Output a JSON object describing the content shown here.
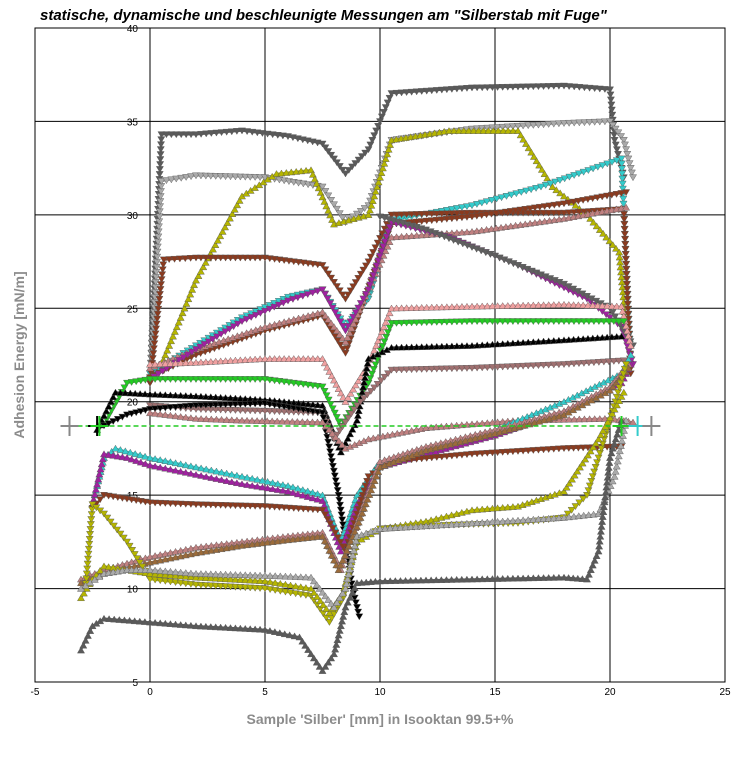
{
  "chart_data": {
    "type": "line",
    "title": "statische, dynamische und beschleunigte Messungen am \"Silberstab mit Fuge\"",
    "xlabel": "Sample 'Silber' [mm] in Isooktan 99.5+%",
    "ylabel": "Adhesion Energy [mN/m]",
    "xlim": [
      -5,
      25
    ],
    "ylim": [
      5,
      40
    ],
    "x_ticks": [
      "-5",
      "0",
      "5",
      "10",
      "15",
      "20",
      "25"
    ],
    "y_ticks": [
      "5",
      "10",
      "15",
      "20",
      "25",
      "30",
      "35",
      "40"
    ],
    "grid": true,
    "baseline": {
      "y": 18.7,
      "x": [
        -3.5,
        21.8
      ],
      "color": "#22cc22"
    },
    "series": [
      {
        "color": "#5a5a5a",
        "marker": "down",
        "x": [
          0,
          0.5,
          2,
          4,
          6,
          7.5,
          8.5,
          9.5,
          10.5,
          14,
          18,
          20,
          20.2,
          20.6
        ],
        "y": [
          21,
          34.3,
          34.3,
          34.5,
          34.2,
          33.8,
          32.2,
          33.5,
          36.5,
          36.8,
          36.9,
          36.7,
          34,
          32
        ]
      },
      {
        "color": "#aaaaaa",
        "marker": "down",
        "x": [
          0,
          0.5,
          2,
          5,
          7.5,
          8.5,
          9.5,
          10.5,
          14,
          18,
          20,
          20.6,
          21
        ],
        "y": [
          21,
          31.8,
          32.1,
          32,
          31.5,
          29.6,
          30.5,
          34,
          34.6,
          34.9,
          35,
          34,
          32
        ]
      },
      {
        "color": "#b5b500",
        "marker": "up",
        "x": [
          0.5,
          2,
          4,
          5.5,
          7,
          8,
          9.5,
          10.5,
          13,
          16,
          17.5,
          19,
          20.4,
          20.7
        ],
        "y": [
          22,
          26.5,
          31,
          32.2,
          32.4,
          29.5,
          30,
          34,
          34.5,
          34.5,
          31.5,
          30,
          28,
          24
        ]
      },
      {
        "color": "#33cccc",
        "marker": "down",
        "x": [
          0,
          2,
          4,
          6,
          7.5,
          8.5,
          9.5,
          10.5,
          14,
          17,
          20.5,
          20.9
        ],
        "y": [
          21.5,
          23,
          24.5,
          25.6,
          26,
          24,
          25.5,
          29.7,
          30.5,
          31.5,
          33,
          22
        ]
      },
      {
        "color": "#8b3a1e",
        "marker": "down",
        "x": [
          0,
          0.6,
          2,
          5,
          7.5,
          8.5,
          9.5,
          10.5,
          14,
          18,
          20.6,
          20.9
        ],
        "y": [
          21,
          27.6,
          27.7,
          27.7,
          27.3,
          25.5,
          27.5,
          30,
          30.1,
          30.1,
          30.3,
          21.5
        ]
      },
      {
        "color": "#8b3a1e",
        "marker": "down",
        "x": [
          0,
          2,
          5,
          7.5,
          8.5,
          10.5,
          14,
          18,
          20.7
        ],
        "y": [
          21.3,
          22.5,
          23.8,
          24.6,
          22.6,
          29.5,
          29.9,
          30.6,
          31.2
        ]
      },
      {
        "color": "#c08080",
        "marker": "up",
        "x": [
          0,
          2,
          5,
          7.5,
          8.5,
          10.5,
          14,
          18,
          20.7
        ],
        "y": [
          21.8,
          22.8,
          24,
          24.8,
          23.2,
          28.8,
          29.1,
          29.8,
          30.4
        ]
      },
      {
        "color": "#a020a0",
        "marker": "down",
        "x": [
          0,
          2,
          4,
          6,
          7.5,
          8.5,
          9.5,
          10.5,
          13,
          16,
          19,
          20.5,
          21
        ],
        "y": [
          21.2,
          22.8,
          24.3,
          25.4,
          26,
          23.8,
          26,
          29.6,
          28.8,
          27.3,
          25.5,
          24,
          22
        ]
      },
      {
        "color": "#606060",
        "marker": "down",
        "x": [
          10,
          12,
          15,
          18,
          20,
          21
        ],
        "y": [
          29.9,
          29.2,
          27.8,
          26.3,
          25,
          23
        ]
      },
      {
        "color": "#f0a0a0",
        "marker": "up",
        "x": [
          0,
          2,
          5,
          7.5,
          8.5,
          9.5,
          10.5,
          14,
          18,
          20.5,
          20.9
        ],
        "y": [
          22,
          22.1,
          22.3,
          22.3,
          20,
          22,
          25,
          25.1,
          25.2,
          25.1,
          23
        ]
      },
      {
        "color": "#22cc22",
        "marker": "down",
        "x": [
          -2,
          -1,
          0,
          2,
          5,
          7.5,
          8.3,
          9.5,
          10.5,
          14,
          18,
          20.6
        ],
        "y": [
          18.8,
          21,
          21.2,
          21.2,
          21.2,
          20.8,
          18.7,
          21,
          24.2,
          24.3,
          24.3,
          24.3
        ]
      },
      {
        "color": "#000000",
        "marker": "up",
        "x": [
          -2.3,
          -1.5,
          0,
          2,
          5,
          7.5,
          8.3,
          9,
          9.5,
          10.5,
          14,
          18,
          20.5
        ],
        "y": [
          18.5,
          20.5,
          20.4,
          20.3,
          20.1,
          19.8,
          17.3,
          19,
          22.3,
          22.9,
          23,
          23.3,
          23.5
        ]
      },
      {
        "color": "#a07070",
        "marker": "down",
        "x": [
          0,
          2,
          5,
          7.5,
          8,
          9,
          10.5,
          14,
          18,
          20.6
        ],
        "y": [
          19.8,
          19.6,
          19.5,
          19.4,
          18,
          19.8,
          21.7,
          21.8,
          22,
          22.2
        ]
      },
      {
        "color": "#000000",
        "marker": "down",
        "x": [
          -2.2,
          -1,
          0,
          2,
          5,
          7.5,
          8.2,
          8.8,
          9.1
        ],
        "y": [
          18.6,
          19.3,
          19.6,
          19.8,
          19.9,
          19.4,
          15,
          10,
          8.5
        ]
      },
      {
        "color": "#c08080",
        "marker": "up",
        "x": [
          0,
          2,
          4,
          7.5,
          8.5,
          9.5,
          12,
          16,
          20,
          21
        ],
        "y": [
          19.4,
          19.1,
          19,
          18.9,
          17.5,
          18,
          18.6,
          19,
          19.1,
          18.9
        ]
      },
      {
        "color": "#33cccc",
        "marker": "up",
        "x": [
          -2.5,
          -2,
          -1.5,
          0,
          2,
          4,
          6,
          7.5,
          8.3,
          9,
          10,
          12,
          15,
          18,
          20.5,
          20.9
        ],
        "y": [
          14.5,
          17,
          17.5,
          17,
          16.5,
          16,
          15.5,
          15,
          12.5,
          15,
          16.8,
          17.5,
          18.5,
          20,
          21.5,
          22.5
        ]
      },
      {
        "color": "#a020a0",
        "marker": "up",
        "x": [
          -2.5,
          -2,
          -1,
          0,
          2,
          4,
          6,
          7.5,
          8.3,
          9,
          10,
          12,
          15,
          18,
          20.5,
          20.9
        ],
        "y": [
          14.5,
          17.2,
          17,
          16.6,
          16.1,
          15.6,
          15.2,
          14.7,
          12,
          14.5,
          16.5,
          17.2,
          18.2,
          19.5,
          21,
          22
        ]
      },
      {
        "color": "#8b3a1e",
        "marker": "down",
        "x": [
          -2.5,
          -2,
          -1,
          0,
          2,
          5,
          7.5,
          8.5,
          9.5,
          10.5,
          14,
          18,
          20.5
        ],
        "y": [
          14.3,
          15,
          14.8,
          14.6,
          14.5,
          14.4,
          14.2,
          12,
          16,
          16.8,
          17.2,
          17.5,
          17.6
        ]
      },
      {
        "color": "#c08080",
        "marker": "up",
        "x": [
          -3,
          -2,
          0,
          2,
          4,
          6,
          7.5,
          8.3,
          9,
          10,
          12,
          15,
          18,
          20,
          20.8
        ],
        "y": [
          10.5,
          11,
          11.7,
          12.2,
          12.5,
          12.8,
          13,
          11,
          13.5,
          16.8,
          17.6,
          18.5,
          19.5,
          20.8,
          22
        ]
      },
      {
        "color": "#9b6b3a",
        "marker": "up",
        "x": [
          -3,
          -2,
          0,
          2,
          4,
          6,
          7.5,
          8.2,
          9,
          10,
          12,
          15,
          18,
          20,
          20.8
        ],
        "y": [
          10.3,
          10.8,
          11.4,
          11.9,
          12.3,
          12.6,
          12.8,
          11,
          13.3,
          16.5,
          17.4,
          18.3,
          19.3,
          20.6,
          21.8
        ]
      },
      {
        "color": "#b5b500",
        "marker": "down",
        "x": [
          -2.8,
          -2.5,
          -2,
          -1,
          0,
          2,
          5,
          7,
          7.8,
          8.4,
          9,
          10,
          13,
          16,
          18,
          19,
          20,
          20.7
        ],
        "y": [
          10,
          14.5,
          14,
          12.5,
          10.5,
          10.2,
          10,
          9.6,
          8.2,
          9.5,
          12.5,
          13.2,
          13.4,
          13.5,
          13.8,
          15,
          19,
          22
        ]
      },
      {
        "color": "#b5b500",
        "marker": "up",
        "x": [
          -3,
          -2.5,
          -2,
          -1,
          0,
          2,
          5,
          7,
          7.8,
          8.4,
          9,
          10,
          12,
          14,
          16,
          18,
          19.5,
          20.6
        ],
        "y": [
          9.5,
          10.5,
          11.2,
          11,
          10.8,
          10.6,
          10.4,
          10,
          8.7,
          9.8,
          12.5,
          13.2,
          13.6,
          14.2,
          14.4,
          15.2,
          18,
          20.5
        ]
      },
      {
        "color": "#aaaaaa",
        "marker": "up",
        "x": [
          -3,
          -2,
          -1,
          0,
          2,
          5,
          7,
          8,
          8.5,
          9,
          10,
          14,
          18,
          19.5,
          20.2,
          20.7
        ],
        "y": [
          10,
          10.8,
          11,
          11,
          10.8,
          10.7,
          10.6,
          9,
          10,
          12.8,
          13.2,
          13.5,
          13.8,
          14,
          16,
          19
        ]
      },
      {
        "color": "#5a5a5a",
        "marker": "up",
        "x": [
          -3,
          -2.5,
          -2,
          0,
          2,
          5,
          6.5,
          7.5,
          8,
          8.5,
          9,
          10,
          14,
          18,
          19,
          19.5,
          20,
          20.5
        ],
        "y": [
          6.7,
          8,
          8.4,
          8.2,
          8,
          7.8,
          7.4,
          5.6,
          6.5,
          9,
          10.3,
          10.4,
          10.5,
          10.6,
          10.5,
          12,
          17,
          19
        ]
      }
    ]
  }
}
